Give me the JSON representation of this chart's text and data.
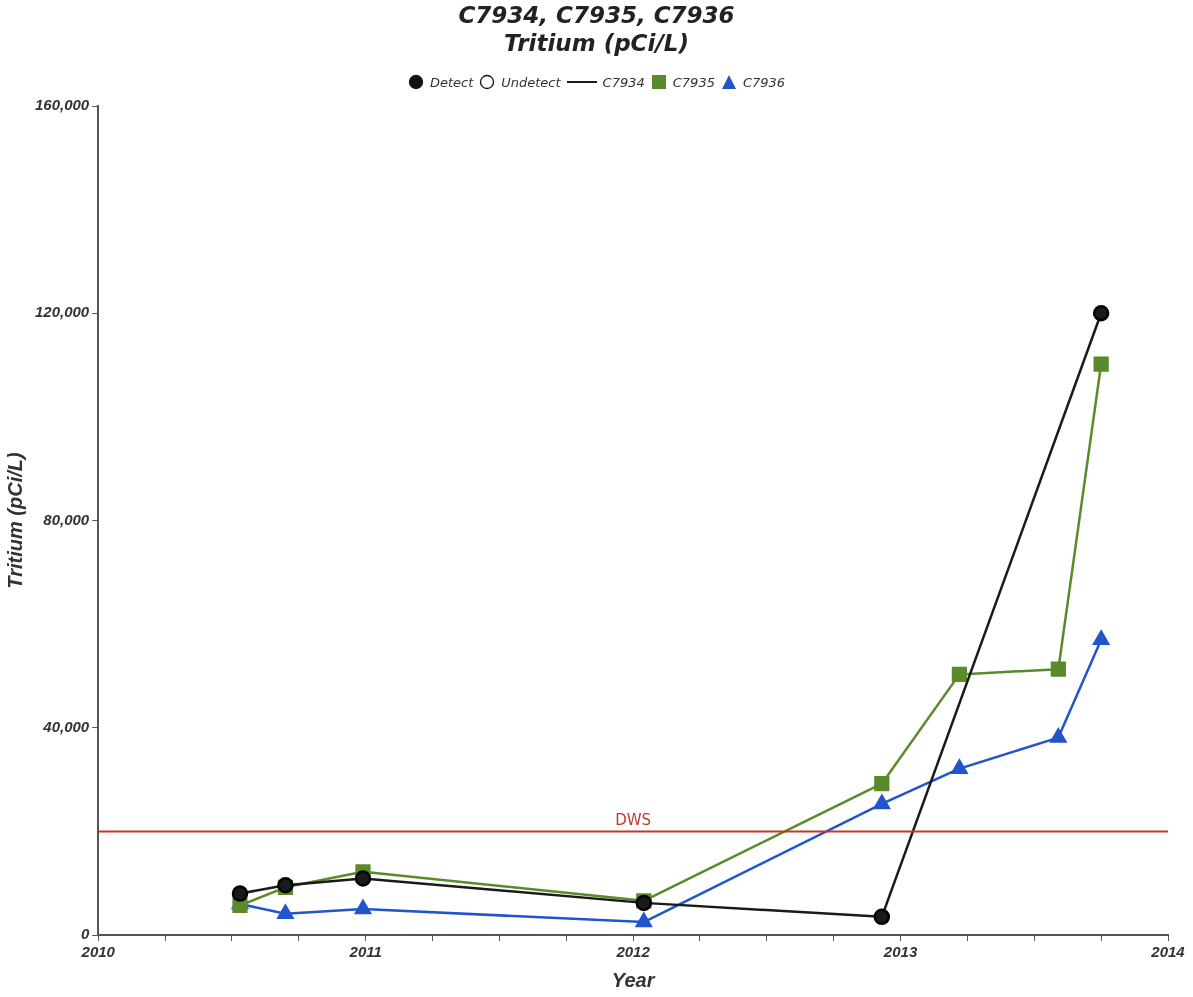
{
  "chart_data": {
    "type": "line",
    "title": "C7934, C7935, C7936",
    "subtitle": "Tritium (pCi/L)",
    "xlabel": "Year",
    "ylabel": "Tritium (pCi/L)",
    "xlim": [
      2010,
      2014
    ],
    "xticks": [
      2010,
      {
        "value": 2010.25,
        "label": null
      },
      {
        "value": 2010.5,
        "label": null
      },
      {
        "value": 2010.75,
        "label": null
      },
      2011,
      {
        "value": 2011.25,
        "label": null
      },
      {
        "value": 2011.5,
        "label": null
      },
      {
        "value": 2011.75,
        "label": null
      },
      2012,
      {
        "value": 2012.25,
        "label": null
      },
      {
        "value": 2012.5,
        "label": null
      },
      {
        "value": 2012.75,
        "label": null
      },
      2013,
      {
        "value": 2013.25,
        "label": null
      },
      {
        "value": 2013.5,
        "label": null
      },
      {
        "value": 2013.75,
        "label": null
      },
      2014
    ],
    "ylim": [
      0,
      160000
    ],
    "yticks": [
      0,
      {
        "value": 40000,
        "label": "40,000"
      },
      {
        "value": 80000,
        "label": "80,000"
      },
      {
        "value": 120000,
        "label": "120,000"
      },
      {
        "value": 160000,
        "label": "160,000"
      }
    ],
    "series": [
      {
        "name": "C7934",
        "color": "#1a1a1a",
        "marker": "circle",
        "x": [
          2010.53,
          2010.7,
          2010.99,
          2012.04,
          2012.93,
          2013.75
        ],
        "values": [
          8000,
          9600,
          10900,
          6200,
          3500,
          120000
        ]
      },
      {
        "name": "C7935",
        "color": "#5b8a2a",
        "marker": "square",
        "x": [
          2010.53,
          2010.7,
          2010.99,
          2012.04,
          2012.93,
          2013.22,
          2013.59,
          2013.75
        ],
        "values": [
          5700,
          9200,
          12200,
          6600,
          29200,
          50300,
          51300,
          110200
        ]
      },
      {
        "name": "C7936",
        "color": "#2255cc",
        "marker": "triangle",
        "x": [
          2010.53,
          2010.7,
          2010.99,
          2012.04,
          2012.93,
          2013.22,
          2013.59,
          2013.75
        ],
        "values": [
          6000,
          4100,
          5000,
          2500,
          25300,
          32100,
          38100,
          57000
        ]
      }
    ],
    "ref_lines": [
      {
        "axis": "y",
        "value": 20000,
        "label": "DWS",
        "color": "#c0392b"
      }
    ],
    "annotations": [
      "Detect",
      "Undetect"
    ],
    "legend": "top",
    "grid": false
  }
}
